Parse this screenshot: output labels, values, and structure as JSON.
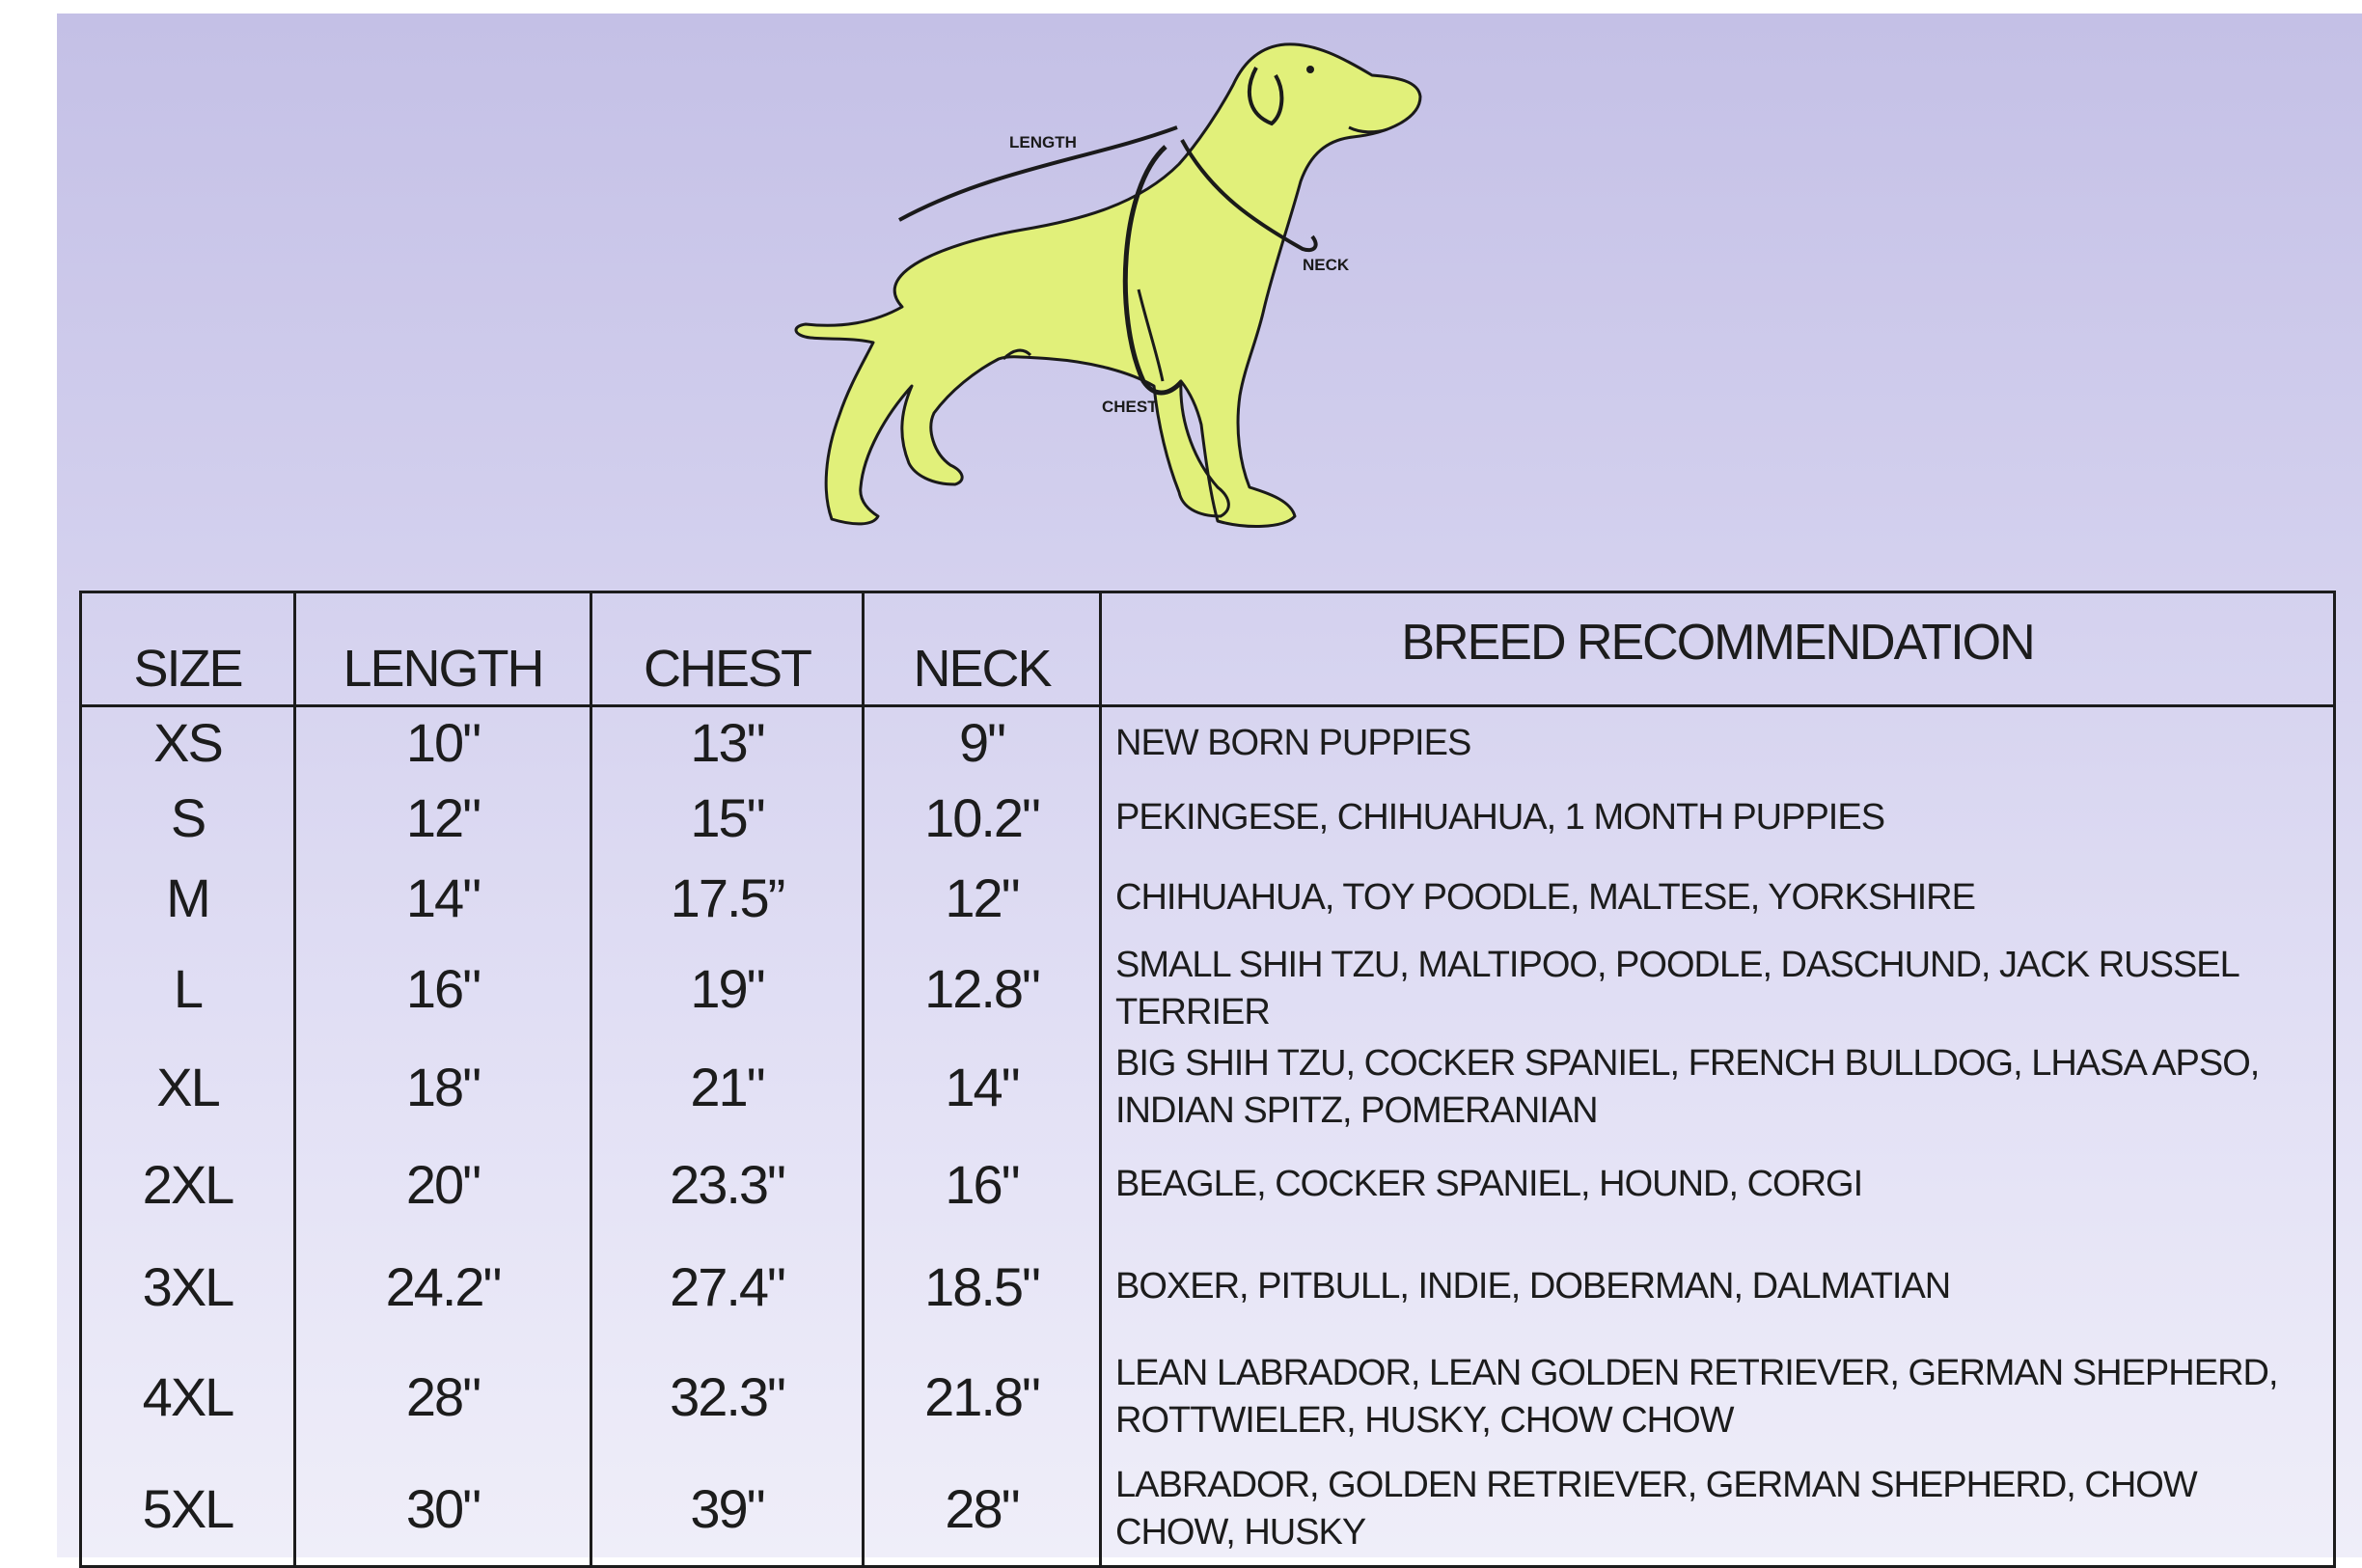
{
  "illustration": {
    "labels": {
      "length": "LENGTH",
      "neck": "NECK",
      "chest": "CHEST"
    },
    "dog_color": "#e1f07a",
    "outline_color": "#1a1a1a"
  },
  "table": {
    "headers": {
      "size": "SIZE",
      "length": "LENGTH",
      "chest": "CHEST",
      "neck": "NECK",
      "breed": "BREED RECOMMENDATION"
    },
    "rows": [
      {
        "size": "XS",
        "length": "10\"",
        "chest": "13\"",
        "neck": "9\"",
        "breed": "NEW BORN PUPPIES"
      },
      {
        "size": "S",
        "length": "12\"",
        "chest": "15\"",
        "neck": "10.2\"",
        "breed": "PEKINGESE, CHIHUAHUA, 1 MONTH PUPPIES"
      },
      {
        "size": "M",
        "length": "14\"",
        "chest": "17.5”",
        "neck": "12\"",
        "breed": "CHIHUAHUA, TOY POODLE, MALTESE, YORKSHIRE"
      },
      {
        "size": "L",
        "length": "16\"",
        "chest": "19\"",
        "neck": "12.8\"",
        "breed": "SMALL SHIH TZU, MALTIPOO, POODLE, DASCHUND, JACK RUSSEL TERRIER"
      },
      {
        "size": "XL",
        "length": "18\"",
        "chest": "21\"",
        "neck": "14\"",
        "breed": "BIG SHIH TZU, COCKER SPANIEL, FRENCH BULLDOG, LHASA APSO, INDIAN SPITZ, POMERANIAN"
      },
      {
        "size": "2XL",
        "length": "20\"",
        "chest": "23.3\"",
        "neck": "16\"",
        "breed": "BEAGLE, COCKER SPANIEL, HOUND, CORGI"
      },
      {
        "size": "3XL",
        "length": "24.2\"",
        "chest": "27.4\"",
        "neck": "18.5\"",
        "breed": "BOXER, PITBULL, INDIE, DOBERMAN, DALMATIAN"
      },
      {
        "size": "4XL",
        "length": "28\"",
        "chest": "32.3\"",
        "neck": "21.8\"",
        "breed": "LEAN LABRADOR, LEAN GOLDEN RETRIEVER, GERMAN SHEPHERD, ROTTWIELER, HUSKY, CHOW CHOW"
      },
      {
        "size": "5XL",
        "length": "30\"",
        "chest": "39\"",
        "neck": "28\"",
        "breed": "LABRADOR, GOLDEN RETRIEVER, GERMAN SHEPHERD, CHOW CHOW, HUSKY"
      }
    ]
  }
}
